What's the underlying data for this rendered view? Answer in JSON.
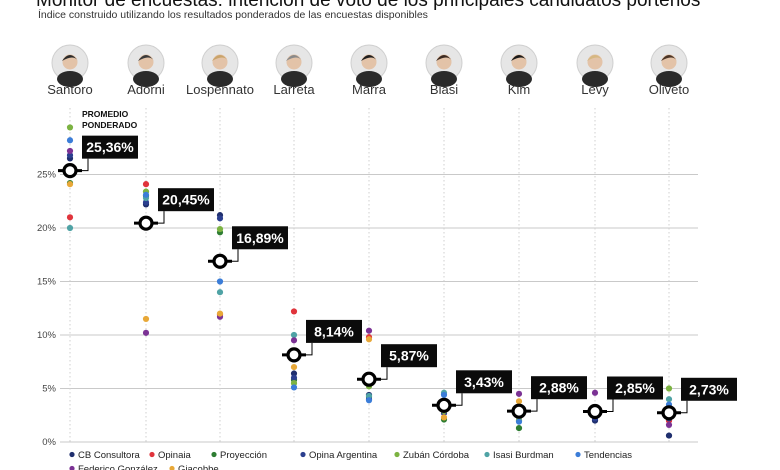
{
  "title": "Monitor de encuestas: intención de voto de los principales candidatos porteños",
  "subtitle": "Índice construido utilizando los resultados ponderados de las encuestas disponibles",
  "chart_data": {
    "type": "scatter",
    "categories": [
      "Santoro",
      "Adorni",
      "Lospennato",
      "Larreta",
      "Marra",
      "Biasi",
      "Kim",
      "Levy",
      "Oliveto"
    ],
    "ylim": [
      0,
      30
    ],
    "yticks": [
      "0%",
      "5%",
      "10%",
      "15%",
      "20%",
      "25%"
    ],
    "yticks_values": [
      0,
      5,
      10,
      15,
      20,
      25
    ],
    "average_label_line1": "PROMEDIO",
    "average_label_line2": "PONDERADO",
    "weighted_average": [
      25.36,
      20.45,
      16.89,
      8.14,
      5.87,
      3.43,
      2.88,
      2.85,
      2.73
    ],
    "weighted_average_labels": [
      "25,36%",
      "20,45%",
      "16,89%",
      "8,14%",
      "5,87%",
      "3,43%",
      "2,88%",
      "2,85%",
      "2,73%"
    ],
    "series": [
      {
        "name": "CB Consultora",
        "color": "#1f2f6e",
        "values": [
          26.5,
          22.2,
          21.2,
          6.4,
          4.4,
          3.1,
          2.4,
          2.0,
          0.6
        ]
      },
      {
        "name": "Opinaia",
        "color": "#e0343c",
        "values": [
          21.0,
          24.1,
          11.9,
          12.2,
          9.8,
          3.6,
          3.2,
          2.4,
          2.0
        ]
      },
      {
        "name": "Proyección",
        "color": "#2e7d32",
        "values": [
          24.2,
          23.0,
          19.6,
          5.8,
          4.2,
          2.1,
          1.3,
          2.5,
          3.0
        ]
      },
      {
        "name": "Opina Argentina",
        "color": "#2b3f8f",
        "values": [
          26.8,
          22.4,
          20.9,
          6.0,
          4.0,
          2.7,
          2.3,
          2.2,
          2.2
        ]
      },
      {
        "name": "Zubán Córdoba",
        "color": "#7cb342",
        "values": [
          29.4,
          23.4,
          19.9,
          5.5,
          5.2,
          2.9,
          2.0,
          2.7,
          5.0
        ]
      },
      {
        "name": "Isasi Burdman",
        "color": "#4fa3a5",
        "values": [
          20.0,
          22.8,
          14.0,
          10.0,
          4.3,
          4.6,
          2.6,
          3.1,
          4.0
        ]
      },
      {
        "name": "Tendencias",
        "color": "#3b7dd8",
        "values": [
          28.2,
          23.1,
          15.0,
          5.1,
          3.9,
          4.4,
          1.9,
          2.6,
          3.5
        ]
      },
      {
        "name": "Federico González",
        "color": "#7b3294",
        "values": [
          27.2,
          10.2,
          11.7,
          9.5,
          10.4,
          3.0,
          4.5,
          4.6,
          1.6
        ]
      },
      {
        "name": "Giacobbe",
        "color": "#e8a838",
        "values": [
          24.1,
          11.5,
          12.0,
          7.0,
          9.6,
          2.3,
          3.8,
          2.9,
          2.5
        ]
      }
    ]
  }
}
